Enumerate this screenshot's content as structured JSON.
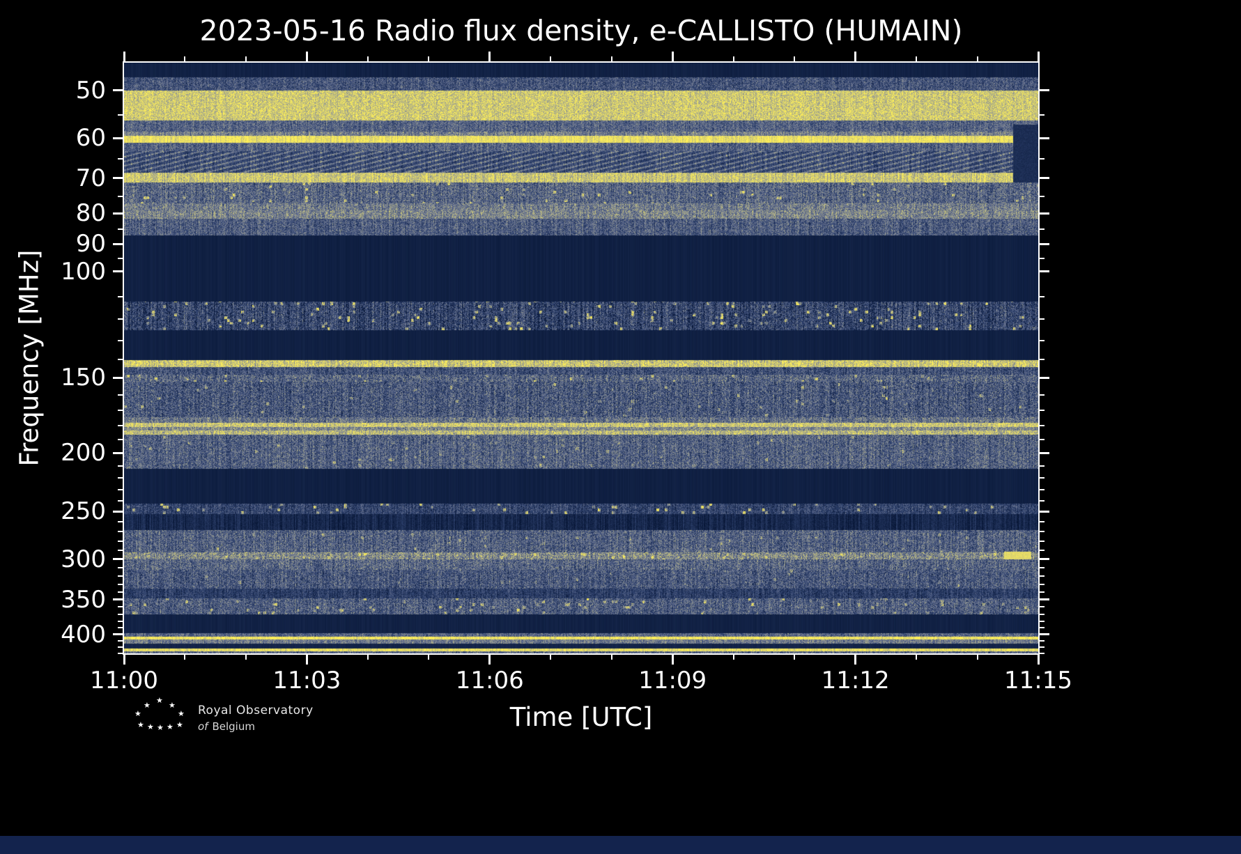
{
  "footer": {
    "star": "★",
    "logo_line1": "Royal Observatory",
    "logo_line2a": "of",
    "logo_line2b": "Belgium"
  },
  "chart_data": {
    "type": "heatmap",
    "title": "2023-05-16 Radio flux density, e-CALLISTO (HUMAIN)",
    "xlabel": "Time [UTC]",
    "ylabel": "Frequency [MHz]",
    "x_ticks": [
      "11:00",
      "11:03",
      "11:06",
      "11:09",
      "11:12",
      "11:15"
    ],
    "x_total_minutes": 15,
    "x_major_every_min": 3,
    "x_minor_every_min": 1,
    "y_scale": "log",
    "y_axis_inverted_low_at_top": true,
    "y_range_mhz": [
      45,
      430
    ],
    "y_ticks": [
      50,
      60,
      70,
      80,
      90,
      100,
      150,
      200,
      250,
      300,
      350,
      400
    ],
    "y_minor_ticks": [
      55,
      65,
      75,
      85,
      95,
      110,
      120,
      130,
      140,
      160,
      170,
      180,
      190,
      210,
      220,
      230,
      240,
      260,
      270,
      280,
      290,
      310,
      320,
      330,
      340,
      360,
      370,
      380,
      390,
      410,
      420,
      430
    ],
    "legend": "none",
    "grid": false,
    "colormap": [
      {
        "v": 0.0,
        "rgb": [
          7,
          22,
          54
        ]
      },
      {
        "v": 0.3,
        "rgb": [
          47,
          66,
          110
        ]
      },
      {
        "v": 0.55,
        "rgb": [
          108,
          118,
          146
        ]
      },
      {
        "v": 0.75,
        "rgb": [
          168,
          170,
          140
        ]
      },
      {
        "v": 1.0,
        "rgb": [
          255,
          240,
          88
        ]
      }
    ],
    "bands": [
      {
        "lo": 45,
        "hi": 47.5,
        "type": "solid",
        "base": 0.08
      },
      {
        "lo": 47.5,
        "hi": 50,
        "type": "noise",
        "base": 0.38,
        "pixVar": 0.22,
        "colVar": 0.08
      },
      {
        "lo": 50,
        "hi": 56,
        "type": "noise",
        "base": 0.86,
        "pixVar": 0.18,
        "colVar": 0.05
      },
      {
        "lo": 56,
        "hi": 58.5,
        "type": "noise",
        "base": 0.45,
        "pixVar": 0.2,
        "colVar": 0.08
      },
      {
        "lo": 58.5,
        "hi": 59.5,
        "type": "noise",
        "base": 0.58,
        "pixVar": 0.2
      },
      {
        "lo": 59.5,
        "hi": 61,
        "type": "noise",
        "base": 0.95,
        "pixVar": 0.1
      },
      {
        "lo": 61,
        "hi": 63,
        "type": "noise",
        "base": 0.45,
        "pixVar": 0.2
      },
      {
        "lo": 63,
        "hi": 68.5,
        "type": "hatch",
        "base": 0.26,
        "amp": 0.4,
        "pixVar": 0.14
      },
      {
        "lo": 68.5,
        "hi": 71,
        "type": "noise",
        "base": 0.85,
        "pixVar": 0.16
      },
      {
        "lo": 71,
        "hi": 77,
        "type": "noise",
        "base": 0.46,
        "pixVar": 0.24,
        "speckleP": 0.02,
        "speckleV": 0.4
      },
      {
        "lo": 77,
        "hi": 79,
        "type": "noise",
        "base": 0.56,
        "pixVar": 0.22
      },
      {
        "lo": 79,
        "hi": 81.5,
        "type": "noise",
        "base": 0.6,
        "pixVar": 0.22
      },
      {
        "lo": 81.5,
        "hi": 87,
        "type": "noise",
        "base": 0.42,
        "pixVar": 0.22
      },
      {
        "lo": 87,
        "hi": 112,
        "type": "solid",
        "base": 0.07
      },
      {
        "lo": 112,
        "hi": 125,
        "type": "noise",
        "base": 0.3,
        "pixVar": 0.26,
        "colVar": 0.15,
        "speckleP": 0.05,
        "speckleV": 0.6
      },
      {
        "lo": 125,
        "hi": 140,
        "type": "solid",
        "base": 0.07
      },
      {
        "lo": 140,
        "hi": 144,
        "type": "noise",
        "base": 0.85,
        "pixVar": 0.2,
        "speckleP": 0.04,
        "speckleV": 0.15
      },
      {
        "lo": 144,
        "hi": 148,
        "type": "noise",
        "base": 0.36,
        "pixVar": 0.22
      },
      {
        "lo": 148,
        "hi": 152,
        "type": "noise",
        "base": 0.46,
        "pixVar": 0.26,
        "speckleP": 0.02,
        "speckleV": 0.4
      },
      {
        "lo": 152,
        "hi": 174,
        "type": "noise",
        "base": 0.4,
        "pixVar": 0.26,
        "speckleP": 0.012,
        "speckleV": 0.35
      },
      {
        "lo": 174,
        "hi": 178,
        "type": "noise",
        "base": 0.52,
        "pixVar": 0.24
      },
      {
        "lo": 178,
        "hi": 181,
        "type": "noise",
        "base": 0.85,
        "pixVar": 0.18
      },
      {
        "lo": 181,
        "hi": 183,
        "type": "noise",
        "base": 0.62,
        "pixVar": 0.22
      },
      {
        "lo": 183,
        "hi": 186,
        "type": "noise",
        "base": 0.8,
        "pixVar": 0.2
      },
      {
        "lo": 186,
        "hi": 212,
        "type": "noise",
        "base": 0.44,
        "pixVar": 0.24,
        "speckleP": 0.008,
        "speckleV": 0.3
      },
      {
        "lo": 212,
        "hi": 242,
        "type": "solid",
        "base": 0.07
      },
      {
        "lo": 242,
        "hi": 252,
        "type": "noise",
        "base": 0.3,
        "pixVar": 0.2,
        "speckleP": 0.04,
        "speckleV": 0.6
      },
      {
        "lo": 252,
        "hi": 268,
        "type": "noise",
        "base": 0.12,
        "pixVar": 0.07
      },
      {
        "lo": 268,
        "hi": 292,
        "type": "noise",
        "base": 0.44,
        "pixVar": 0.24,
        "speckleP": 0.01,
        "speckleV": 0.3
      },
      {
        "lo": 292,
        "hi": 300,
        "type": "noise",
        "base": 0.62,
        "pixVar": 0.26,
        "speckleP": 0.03,
        "speckleV": 0.3
      },
      {
        "lo": 300,
        "hi": 312,
        "type": "noise",
        "base": 0.46,
        "pixVar": 0.24
      },
      {
        "lo": 312,
        "hi": 335,
        "type": "noise",
        "base": 0.4,
        "pixVar": 0.24,
        "speckleP": 0.01,
        "speckleV": 0.3
      },
      {
        "lo": 335,
        "hi": 348,
        "type": "noise",
        "base": 0.26,
        "pixVar": 0.16
      },
      {
        "lo": 348,
        "hi": 370,
        "type": "noise",
        "base": 0.42,
        "pixVar": 0.24,
        "speckleP": 0.035,
        "speckleV": 0.45
      },
      {
        "lo": 370,
        "hi": 398,
        "type": "solid",
        "base": 0.08
      },
      {
        "lo": 398,
        "hi": 403,
        "type": "noise",
        "base": 0.46,
        "pixVar": 0.2
      },
      {
        "lo": 403,
        "hi": 407,
        "type": "noise",
        "base": 0.97,
        "pixVar": 0.08
      },
      {
        "lo": 407,
        "hi": 414,
        "type": "noise",
        "base": 0.56,
        "pixVar": 0.18
      },
      {
        "lo": 414,
        "hi": 421,
        "type": "solid",
        "base": 0.1
      },
      {
        "lo": 421,
        "hi": 426,
        "type": "noise",
        "base": 0.95,
        "pixVar": 0.1
      },
      {
        "lo": 426,
        "hi": 430,
        "type": "noise",
        "base": 0.5,
        "pixVar": 0.2
      }
    ],
    "patches": [
      {
        "x0": 0.972,
        "x1": 1.0,
        "f0": 57,
        "f1": 71,
        "value": 0.16
      },
      {
        "x0": 0.962,
        "x1": 0.992,
        "f0": 291,
        "f1": 300,
        "value": 0.92
      }
    ]
  }
}
